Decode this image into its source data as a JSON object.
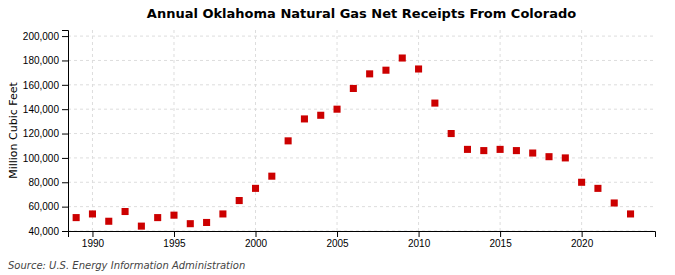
{
  "chart_data": {
    "type": "scatter",
    "title": "Annual Oklahoma Natural Gas Net Receipts From Colorado",
    "y_label": "Million Cubic Feet",
    "annotations": [
      "Source: U.S. Energy Information Administration"
    ],
    "x": [
      1989,
      1990,
      1991,
      1992,
      1993,
      1994,
      1995,
      1996,
      1997,
      1998,
      1999,
      2000,
      2001,
      2002,
      2003,
      2004,
      2005,
      2006,
      2007,
      2008,
      2009,
      2010,
      2011,
      2012,
      2013,
      2014,
      2015,
      2016,
      2017,
      2018,
      2019,
      2020,
      2021,
      2022,
      2023
    ],
    "values": [
      51000,
      54000,
      48000,
      56000,
      44000,
      51000,
      53000,
      46000,
      47000,
      54000,
      65000,
      75000,
      85000,
      114000,
      132000,
      135000,
      140000,
      157000,
      169000,
      172000,
      182000,
      173000,
      145000,
      120000,
      107000,
      106000,
      107000,
      106000,
      104000,
      101000,
      100000,
      80000,
      75000,
      63000,
      54000
    ],
    "color": "#cc0000",
    "marker": "square",
    "xlim": [
      1988.5,
      2024.5
    ],
    "ylim": [
      40000,
      205000
    ],
    "xticks": [
      1990,
      1995,
      2000,
      2005,
      2010,
      2015,
      2020
    ],
    "yticks": [
      {
        "value": 40000,
        "label": "40,000"
      },
      {
        "value": 60000,
        "label": "60,000"
      },
      {
        "value": 80000,
        "label": "80,000"
      },
      {
        "value": 100000,
        "label": "100,000"
      },
      {
        "value": 120000,
        "label": "120,000"
      },
      {
        "value": 140000,
        "label": "140,000"
      },
      {
        "value": 160000,
        "label": "160,000"
      },
      {
        "value": 180000,
        "label": "180,000"
      },
      {
        "value": 200000,
        "label": "200,000"
      }
    ],
    "grid": true
  }
}
